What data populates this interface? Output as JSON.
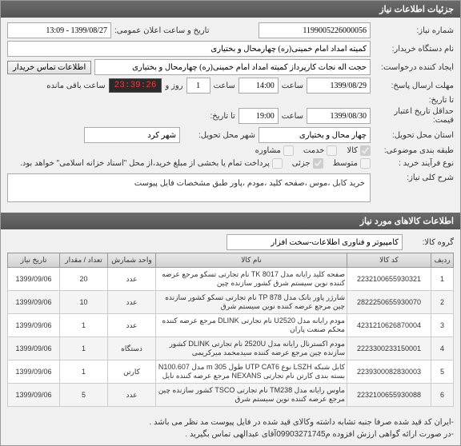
{
  "header": {
    "title": "جزئیات اطلاعات نیاز"
  },
  "fields": {
    "need_number_label": "شماره نیاز:",
    "need_number": "1199005226000056",
    "announce_label": "تاریخ و ساعت اعلان عمومی:",
    "announce_value": "1399/08/27 - 13:09",
    "buyer_org_label": "نام دستگاه خریدار:",
    "buyer_org": "کمیته امداد امام خمینی(ره) چهارمحال و بختیاری",
    "creator_label": "ایجاد کننده درخواست:",
    "creator": "حجت اله نجات کارپرداز کمیته امداد امام خمینی(ره) چهارمحال و بختیاری",
    "contact_btn": "اطلاعات تماس خریدار",
    "deadline_answer_label": "مهلت ارسال پاسخ:",
    "deadline_answer_date": "1399/08/29",
    "deadline_answer_hour": "14:00",
    "saat": "ساعت",
    "days_left": "1",
    "rooz_va": "روز و",
    "countdown": "23:39:26",
    "remaining": "ساعت باقی مانده",
    "till_label": "تا تاریخ:",
    "credit_label": "حداقل تاریخ اعتبار قیمت:",
    "credit_date": "1399/08/30",
    "credit_hour": "19:00",
    "ta_tarikh": "تا تاریخ:",
    "delivery_state_label": "استان محل تحویل:",
    "delivery_state": "چهار محال و بختیاری",
    "delivery_city_label": "شهر محل تحویل:",
    "delivery_city": "شهر کرد",
    "budget_class_label": "طبقه بندی موضوعی:",
    "budget_cb1": "کالا",
    "budget_cb2": "خدمت",
    "budget_cb3": "مشاوره",
    "process_label": "نوع فرآیند خرید :",
    "process_cb1": "متوسط",
    "process_cb2": "جزئی",
    "process_note": "پرداخت تمام یا بخشی از مبلغ خرید،از محل \"اسناد خزانه اسلامی\" خواهد بود.",
    "desc_label": "شرح کلی نیاز:",
    "desc_text": "خرید کابل ،موس ،صفحه کلید ،مودم ،پاور طبق مشخصات فایل پیوست"
  },
  "items_header": "اطلاعات کالاهای مورد نیاز",
  "group_label": "گروه کالا:",
  "group_value": "کامپیوتر و فناوری اطلاعات-سخت افزار",
  "table": {
    "cols": [
      "ردیف",
      "کد کالا",
      "نام کالا",
      "واحد شمارش",
      "تعداد / مقدار",
      "تاریخ نیاز"
    ],
    "rows": [
      [
        "1",
        "2232100655930321",
        "صفحه کلید رایانه مدل TK 8017 نام تجارتی تسکو مرجع عرضه کننده نوین سیستم شرق کشور سازنده چین",
        "عدد",
        "20",
        "1399/09/06"
      ],
      [
        "2",
        "2822250655930070",
        "شارژر پاور بانک مدل TP 878 نام تجارتی تسکو کشور سازنده چین مرجع عرضه کننده نوین سیستم شرق",
        "عدد",
        "10",
        "1399/09/06"
      ],
      [
        "3",
        "4231210626870004",
        "مودم رایانه مدل U2520 نام تجارتی DLINK مرجع عرضه کننده محکم صنعت پاران",
        "عدد",
        "1",
        "1399/09/06"
      ],
      [
        "4",
        "2223300233150001",
        "مودم اکسترنال رایانه مدل 2520U نام تجارتی DLINK کشور سازنده چین مرجع عرضه کننده سیدمحمد میرکریمی",
        "دستگاه",
        "1",
        "1399/09/06"
      ],
      [
        "5",
        "2239300082830003",
        "کابل شبکه LSZH نوع UTP CAT6 طول m 305 مدل N100.607 بسته بندی کارتن نام تجارتی NEXANS مرجع عرضه کننده نایل",
        "کارتن",
        "1",
        "1399/09/06"
      ],
      [
        "6",
        "2232100655930088",
        "ماوس رایانه مدل TM238 نام تجارتی TSCO کشور سازنده چین مرجع عرضه کننده نوین سیستم شرق",
        "عدد",
        "5",
        "1399/09/06"
      ]
    ]
  },
  "notes": {
    "line1": "-ایران کد قید شده صرفا جنبه تشابه داشته وکالای قید شده در فایل پیوست مد نظر می باشد .",
    "line2": "-در صورت ارائه گواهی ارزش افزوده م09903271745آقای عبدالهی  تماس بگیرید ."
  }
}
